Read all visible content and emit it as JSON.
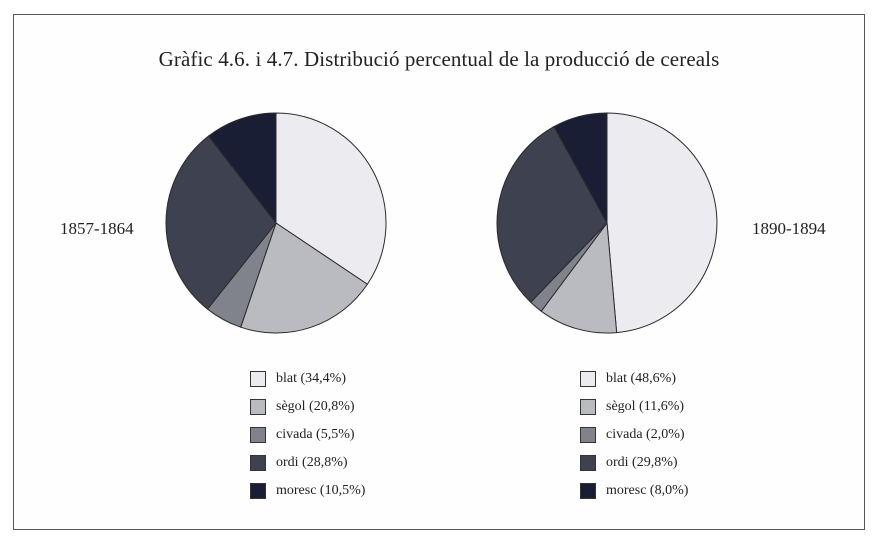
{
  "title": "Gràfic 4.6. i 4.7. Distribució percentual de la producció de cereals",
  "colors": {
    "blat": "#ecebef",
    "segol": "#b9bbc1",
    "civada": "#80838b",
    "ordi": "#3d4150",
    "moresc": "#1a1e35",
    "stroke": "#2b2b2b"
  },
  "chart_data": [
    {
      "type": "pie",
      "label": "1857-1864",
      "categories": [
        "blat",
        "sègol",
        "civada",
        "ordi",
        "moresc"
      ],
      "values": [
        34.4,
        20.8,
        5.5,
        28.8,
        10.5
      ],
      "legend": [
        "blat (34,4%)",
        "sègol (20,8%)",
        "civada (5,5%)",
        "ordi (28,8%)",
        "moresc (10,5%)"
      ]
    },
    {
      "type": "pie",
      "label": "1890-1894",
      "categories": [
        "blat",
        "sègol",
        "civada",
        "ordi",
        "moresc"
      ],
      "values": [
        48.6,
        11.6,
        2.0,
        29.8,
        8.0
      ],
      "legend": [
        "blat (48,6%)",
        "sègol (11,6%)",
        "civada (2,0%)",
        "ordi (29,8%)",
        "moresc (8,0%)"
      ]
    }
  ]
}
